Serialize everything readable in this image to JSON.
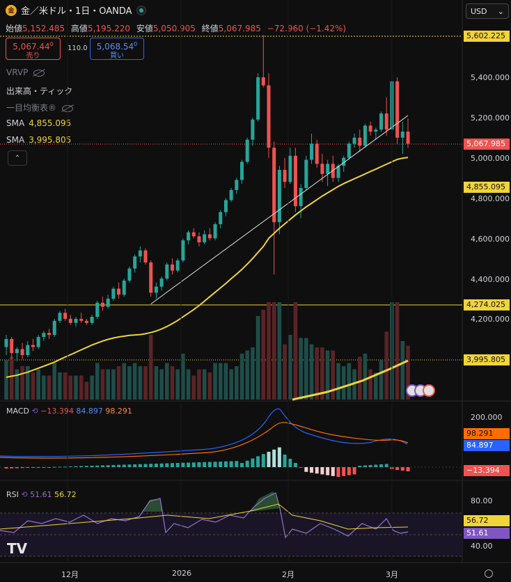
{
  "header": {
    "coin_glyph": "金",
    "title": "金／米ドル・1日・OANDA",
    "currency": "USD",
    "currency_caret": "⌄"
  },
  "ohlc": {
    "open_label": "始値",
    "open": "5,152.485",
    "high_label": "高値",
    "high": "5,195.220",
    "low_label": "安値",
    "low": "5,050.905",
    "close_label": "終値",
    "close": "5,067.985",
    "change": "−72.960 (−1.42%)"
  },
  "trade": {
    "sell_price": "5,067.44",
    "sell_sup": "0",
    "sell_label": "売り",
    "spread": "110.0",
    "buy_price": "5,068.54",
    "buy_sup": "0",
    "buy_label": "買い"
  },
  "indicators": {
    "vrvp": "VRVP",
    "volume_tick": "出来高・ティック",
    "ichimoku": "一目均衡表",
    "ichimoku_mark": "®",
    "sma1_label": "SMA",
    "sma1_value": "4,855.095",
    "sma2_label": "SMA",
    "sma2_value": "3,995.805",
    "collapse_glyph": "⌃"
  },
  "macd": {
    "label": "MACD",
    "hist": "−13.394",
    "macd": "84.897",
    "signal": "98.291",
    "tag_signal": "98.291",
    "tag_macd": "84.897",
    "tag_hist": "−13.394"
  },
  "rsi": {
    "label": "RSI",
    "rsi": "51.61",
    "ma": "56.72",
    "tag_ma": "56.72",
    "tag_rsi": "51.61"
  },
  "price_tags": {
    "high_line": "5,602.225",
    "last": "5,067.985",
    "sma1": "4,855.095",
    "support": "4,274.025",
    "sma2": "3,995.805"
  },
  "price_axis": [
    "5,400.000",
    "5,200.000",
    "5,000.000",
    "4,800.000",
    "4,600.000",
    "4,400.000",
    "4,200.000"
  ],
  "macd_axis": [
    "200.000"
  ],
  "rsi_axis": [
    "80.00",
    "40.00"
  ],
  "time_axis": [
    "12月",
    "2026",
    "2月",
    "3月"
  ],
  "logo": "TV",
  "colors": {
    "up": "#26a69a",
    "down": "#ef5350",
    "sma": "#f0d43a",
    "macd": "#2962ff",
    "signal": "#ff6d00",
    "rsi": "#7e57c2"
  },
  "chart_data": {
    "type": "candlestick",
    "title": "金／米ドル・1日・OANDA",
    "ylim": [
      3850,
      5650
    ],
    "ohlc": [
      [
        4060,
        4120,
        4020,
        4100
      ],
      [
        4100,
        4110,
        4000,
        4030
      ],
      [
        4030,
        4060,
        3990,
        4050
      ],
      [
        4050,
        4080,
        4000,
        4020
      ],
      [
        4020,
        4090,
        4010,
        4070
      ],
      [
        4070,
        4100,
        4040,
        4060
      ],
      [
        4060,
        4120,
        4050,
        4110
      ],
      [
        4110,
        4140,
        4090,
        4130
      ],
      [
        4130,
        4150,
        4100,
        4120
      ],
      [
        4120,
        4200,
        4110,
        4190
      ],
      [
        4190,
        4240,
        4180,
        4230
      ],
      [
        4230,
        4250,
        4190,
        4200
      ],
      [
        4200,
        4220,
        4170,
        4180
      ],
      [
        4180,
        4210,
        4160,
        4200
      ],
      [
        4200,
        4230,
        4180,
        4190
      ],
      [
        4190,
        4200,
        4170,
        4180
      ],
      [
        4180,
        4220,
        4170,
        4210
      ],
      [
        4210,
        4290,
        4200,
        4280
      ],
      [
        4280,
        4310,
        4240,
        4260
      ],
      [
        4260,
        4320,
        4250,
        4300
      ],
      [
        4300,
        4360,
        4290,
        4350
      ],
      [
        4350,
        4380,
        4300,
        4320
      ],
      [
        4320,
        4400,
        4310,
        4390
      ],
      [
        4390,
        4460,
        4380,
        4450
      ],
      [
        4450,
        4520,
        4430,
        4510
      ],
      [
        4510,
        4560,
        4480,
        4540
      ],
      [
        4540,
        4550,
        4470,
        4480
      ],
      [
        4480,
        4490,
        4310,
        4330
      ],
      [
        4330,
        4380,
        4300,
        4360
      ],
      [
        4360,
        4410,
        4340,
        4400
      ],
      [
        4400,
        4480,
        4390,
        4470
      ],
      [
        4470,
        4500,
        4420,
        4440
      ],
      [
        4440,
        4500,
        4430,
        4490
      ],
      [
        4490,
        4600,
        4480,
        4590
      ],
      [
        4590,
        4640,
        4570,
        4630
      ],
      [
        4630,
        4650,
        4600,
        4610
      ],
      [
        4610,
        4630,
        4560,
        4580
      ],
      [
        4580,
        4640,
        4570,
        4620
      ],
      [
        4620,
        4650,
        4590,
        4600
      ],
      [
        4600,
        4680,
        4590,
        4670
      ],
      [
        4670,
        4740,
        4650,
        4730
      ],
      [
        4730,
        4800,
        4710,
        4790
      ],
      [
        4790,
        4850,
        4780,
        4840
      ],
      [
        4840,
        4900,
        4820,
        4890
      ],
      [
        4890,
        4990,
        4870,
        4980
      ],
      [
        4980,
        5100,
        4970,
        5090
      ],
      [
        5090,
        5200,
        5060,
        5190
      ],
      [
        5190,
        5420,
        5180,
        5400
      ],
      [
        5400,
        5610,
        5350,
        5360
      ],
      [
        5360,
        5420,
        5000,
        5050
      ],
      [
        5050,
        5080,
        4420,
        4680
      ],
      [
        4680,
        4960,
        4620,
        4940
      ],
      [
        4940,
        5000,
        4850,
        4880
      ],
      [
        4880,
        5050,
        4870,
        5010
      ],
      [
        5010,
        5050,
        4730,
        4760
      ],
      [
        4760,
        4870,
        4700,
        4850
      ],
      [
        4850,
        5010,
        4840,
        4990
      ],
      [
        4990,
        5120,
        4970,
        5070
      ],
      [
        5070,
        5090,
        4950,
        4970
      ],
      [
        4970,
        5020,
        4880,
        4920
      ],
      [
        4920,
        4990,
        4860,
        4970
      ],
      [
        4970,
        5010,
        4880,
        4900
      ],
      [
        4900,
        4970,
        4880,
        4960
      ],
      [
        4960,
        5010,
        4930,
        5000
      ],
      [
        5000,
        5080,
        4990,
        5070
      ],
      [
        5070,
        5120,
        5050,
        5100
      ],
      [
        5100,
        5140,
        5030,
        5060
      ],
      [
        5060,
        5170,
        5050,
        5160
      ],
      [
        5160,
        5180,
        5110,
        5130
      ],
      [
        5130,
        5150,
        5090,
        5140
      ],
      [
        5140,
        5230,
        5130,
        5220
      ],
      [
        5220,
        5300,
        5110,
        5140
      ],
      [
        5140,
        5420,
        5130,
        5380
      ],
      [
        5380,
        5400,
        5070,
        5100
      ],
      [
        5100,
        5180,
        5020,
        5130
      ],
      [
        5130,
        5195,
        5050,
        5070
      ]
    ],
    "sma_long": [
      3910,
      3915,
      3920,
      3928,
      3935,
      3945,
      3955,
      3965,
      3975,
      3985,
      3998,
      4010,
      4022,
      4034,
      4046,
      4058,
      4070,
      4080,
      4090,
      4098,
      4105,
      4110,
      4114,
      4118,
      4120,
      4122,
      4126,
      4132,
      4140,
      4150,
      4162,
      4176,
      4192,
      4210,
      4228,
      4246,
      4266,
      4288,
      4310,
      4332,
      4354,
      4376,
      4400,
      4422,
      4446,
      4472,
      4500,
      4530,
      4560,
      4600,
      4625,
      4650,
      4672,
      4694,
      4716,
      4736,
      4756,
      4774,
      4792,
      4810,
      4826,
      4842,
      4858,
      4872,
      4884,
      4896,
      4908,
      4920,
      4932,
      4944,
      4956,
      4968,
      4980,
      4992,
      4998,
      5002
    ],
    "support_line": [
      [
        27,
        4274
      ],
      [
        75,
        5210
      ]
    ],
    "macd_values": {
      "macd": 84.897,
      "signal": 98.291,
      "hist": -13.394
    },
    "rsi_values": {
      "rsi": 51.61,
      "ma": 56.72
    }
  }
}
